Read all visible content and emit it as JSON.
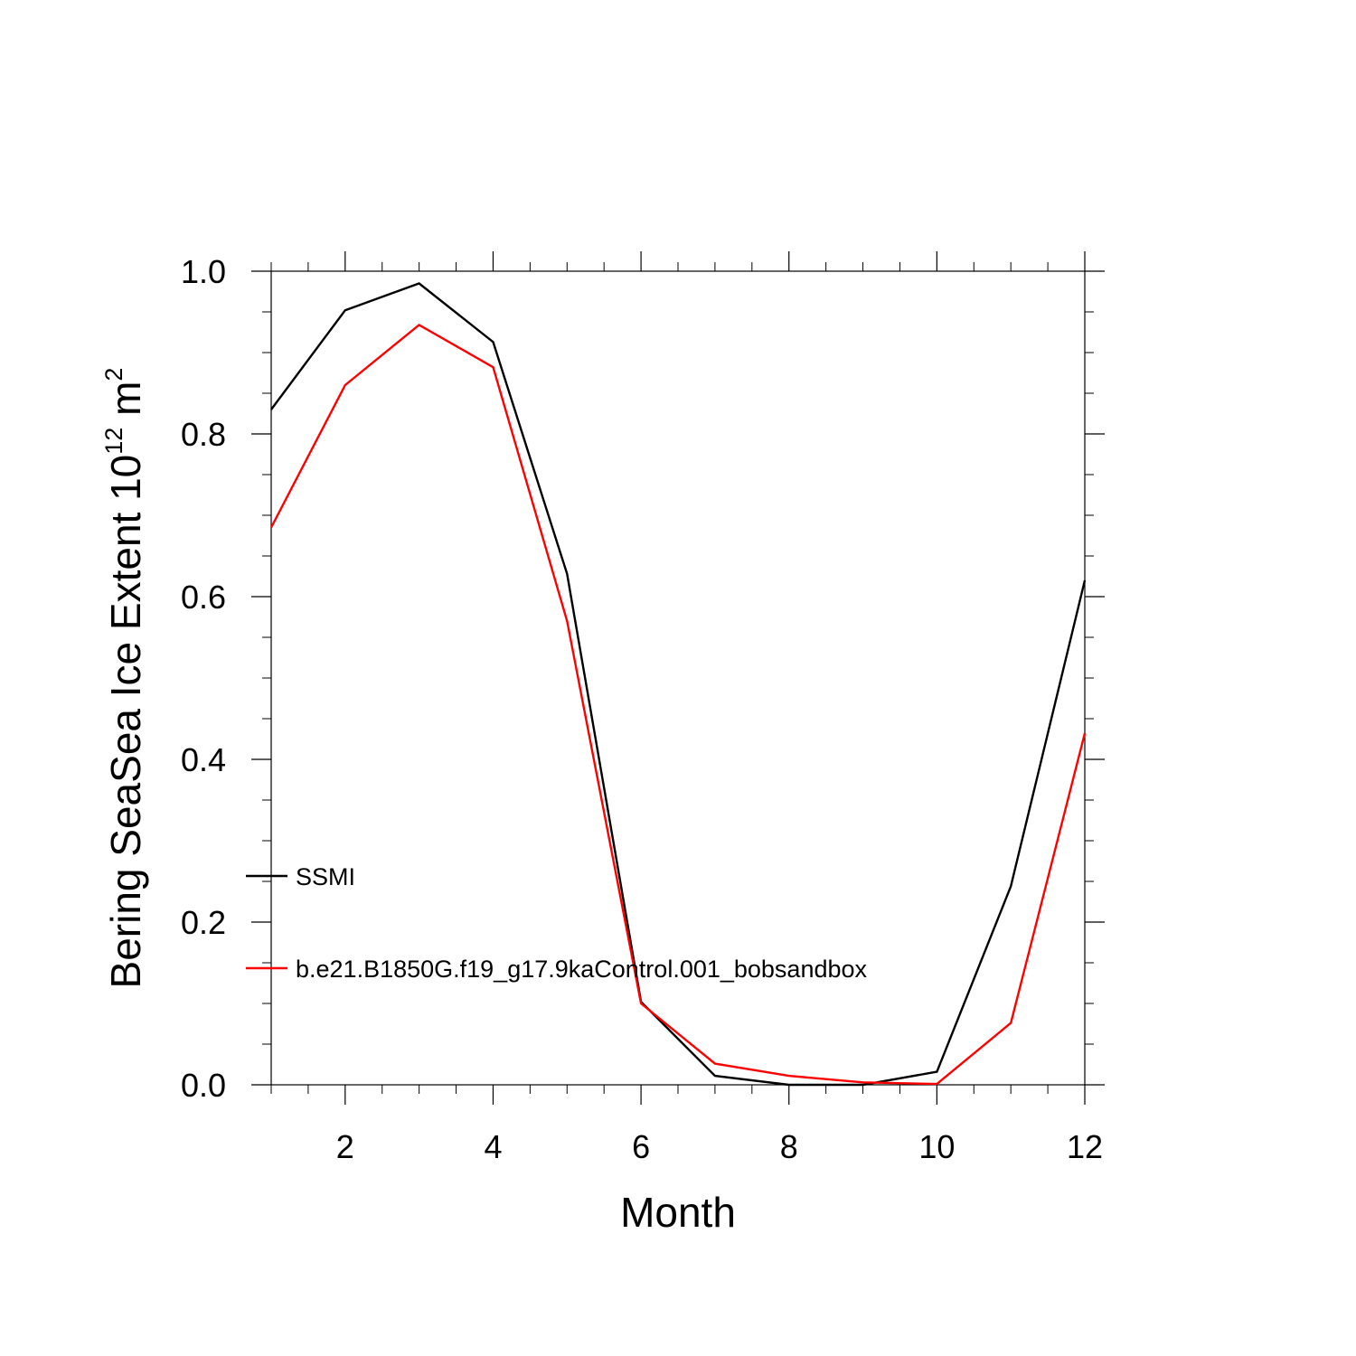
{
  "chart_data": {
    "type": "line",
    "title": "",
    "xlabel": "Month",
    "ylabel_main": "Bering SeaSea Ice Extent 10",
    "ylabel_exp": "12",
    "ylabel_unit": " m",
    "ylabel_unit_exp": "2",
    "xlim": [
      1,
      12
    ],
    "ylim": [
      0.0,
      1.0
    ],
    "x_ticks": [
      2,
      4,
      6,
      8,
      10,
      12
    ],
    "x_tick_labels": [
      "2",
      "4",
      "6",
      "8",
      "10",
      "12"
    ],
    "y_ticks": [
      0.0,
      0.2,
      0.4,
      0.6,
      0.8,
      1.0
    ],
    "y_tick_labels": [
      "0.0",
      "0.2",
      "0.4",
      "0.6",
      "0.8",
      "1.0"
    ],
    "x": [
      1,
      2,
      3,
      4,
      5,
      6,
      7,
      8,
      9,
      10,
      11,
      12
    ],
    "legend_position": "left-middle",
    "series": [
      {
        "name": "SSMI",
        "color": "#000000",
        "values": [
          0.83,
          0.952,
          0.985,
          0.913,
          0.628,
          0.102,
          0.011,
          0.0,
          0.0,
          0.016,
          0.244,
          0.62
        ]
      },
      {
        "name": "b.e21.B1850G.f19_g17.9kaControl.001_bobsandbox",
        "color": "#ff0000",
        "values": [
          0.685,
          0.86,
          0.934,
          0.882,
          0.57,
          0.1,
          0.026,
          0.011,
          0.003,
          0.001,
          0.076,
          0.432
        ]
      }
    ]
  }
}
